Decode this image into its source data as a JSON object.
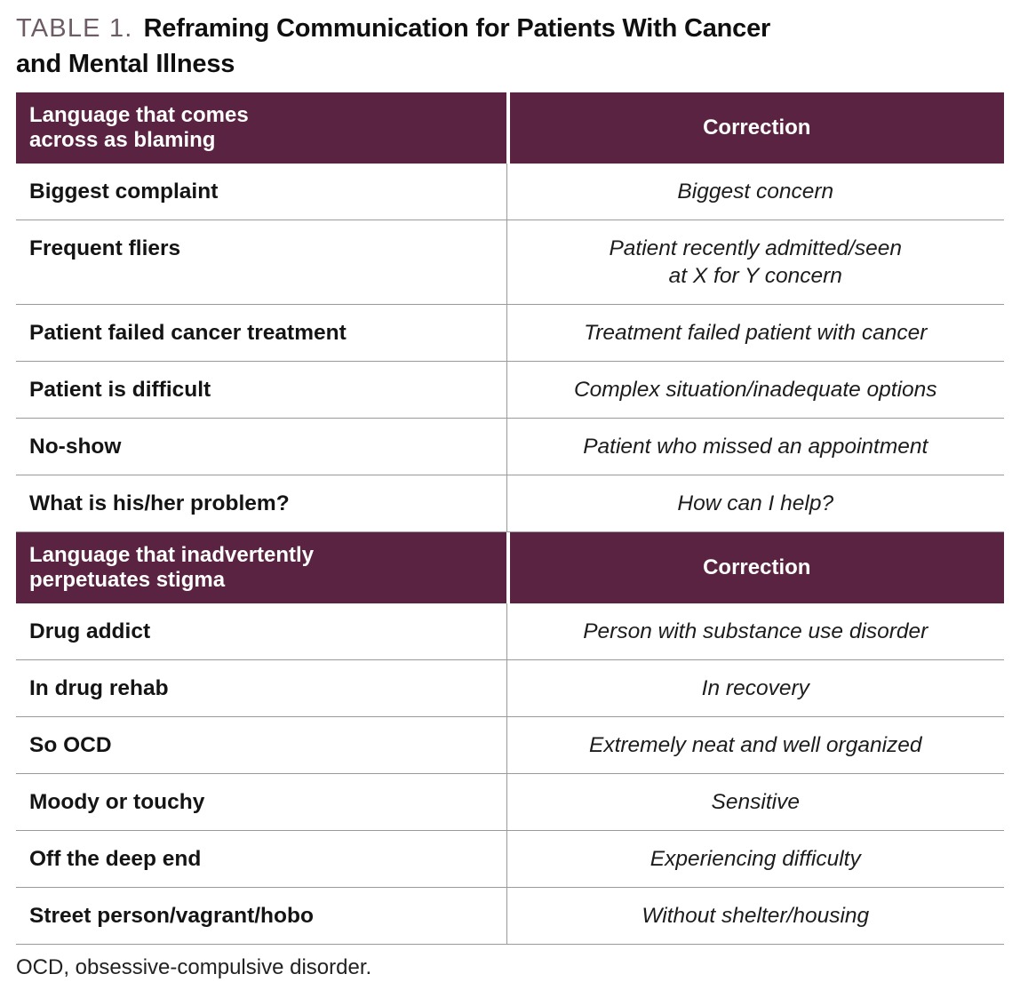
{
  "title": {
    "label": "TABLE 1.",
    "line1": "Reframing Communication for Patients With Cancer",
    "line2": "and Mental Illness"
  },
  "colors": {
    "header_bg": "#5a2342",
    "header_text": "#ffffff",
    "title_label": "#6d5c66",
    "row_border": "#9a9a9a",
    "body_text": "#161616"
  },
  "sections": [
    {
      "header_left": "Language that comes\nacross as blaming",
      "header_right": "Correction",
      "rows": [
        {
          "term": "Biggest complaint",
          "correction": "Biggest concern"
        },
        {
          "term": "Frequent fliers",
          "correction": "Patient recently admitted/seen\nat X for Y concern"
        },
        {
          "term": "Patient failed cancer treatment",
          "correction": "Treatment failed patient with cancer"
        },
        {
          "term": "Patient is difficult",
          "correction": "Complex situation/inadequate options"
        },
        {
          "term": "No-show",
          "correction": "Patient who missed an appointment"
        },
        {
          "term": "What is his/her problem?",
          "correction": "How can I help?"
        }
      ]
    },
    {
      "header_left": "Language that inadvertently\nperpetuates stigma",
      "header_right": "Correction",
      "rows": [
        {
          "term": "Drug addict",
          "correction": "Person with substance use disorder"
        },
        {
          "term": "In drug rehab",
          "correction": "In recovery"
        },
        {
          "term": "So OCD",
          "correction": "Extremely neat and well organized"
        },
        {
          "term": "Moody or touchy",
          "correction": "Sensitive"
        },
        {
          "term": "Off the deep end",
          "correction": "Experiencing difficulty"
        },
        {
          "term": "Street person/vagrant/hobo",
          "correction": "Without shelter/housing"
        }
      ]
    }
  ],
  "footnote": "OCD, obsessive-compulsive disorder."
}
